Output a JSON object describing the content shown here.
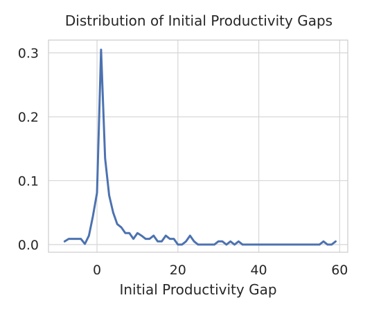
{
  "chart_data": {
    "type": "line",
    "title": "Distribution of Initial Productivity Gaps",
    "xlabel": "Initial Productivity Gap",
    "ylabel": "",
    "xlim": [
      -12,
      62
    ],
    "ylim": [
      -0.012,
      0.32
    ],
    "xticks": [
      0,
      20,
      40,
      60
    ],
    "xtick_labels": [
      "0",
      "20",
      "40",
      "60"
    ],
    "yticks": [
      0.0,
      0.1,
      0.2,
      0.3
    ],
    "ytick_labels": [
      "0.0",
      "0.1",
      "0.2",
      "0.3"
    ],
    "grid": true,
    "series": [
      {
        "color": "#4c72b0",
        "x": [
          -8,
          -7,
          -6,
          -5,
          -4,
          -3,
          -2,
          -1,
          0,
          1,
          2,
          3,
          4,
          5,
          6,
          7,
          8,
          9,
          10,
          11,
          12,
          13,
          14,
          15,
          16,
          17,
          18,
          19,
          20,
          21,
          22,
          23,
          24,
          25,
          26,
          27,
          28,
          29,
          30,
          31,
          32,
          33,
          34,
          35,
          36,
          37,
          38,
          39,
          40,
          41,
          42,
          43,
          44,
          45,
          46,
          47,
          48,
          49,
          50,
          51,
          52,
          53,
          54,
          55,
          56,
          57,
          58,
          59
        ],
        "y": [
          0.005,
          0.009,
          0.009,
          0.009,
          0.009,
          0.001,
          0.014,
          0.045,
          0.081,
          0.305,
          0.135,
          0.077,
          0.05,
          0.032,
          0.027,
          0.018,
          0.018,
          0.009,
          0.018,
          0.014,
          0.009,
          0.009,
          0.014,
          0.005,
          0.005,
          0.014,
          0.009,
          0.009,
          0.0,
          0.0,
          0.005,
          0.014,
          0.005,
          0.0,
          0.0,
          0.0,
          0.0,
          0.0,
          0.005,
          0.005,
          0.0,
          0.005,
          0.0,
          0.005,
          0.0,
          0.0,
          0.0,
          0.0,
          0.0,
          0.0,
          0.0,
          0.0,
          0.0,
          0.0,
          0.0,
          0.0,
          0.0,
          0.0,
          0.0,
          0.0,
          0.0,
          0.0,
          0.0,
          0.0,
          0.005,
          0.0,
          0.0,
          0.005
        ]
      }
    ]
  }
}
